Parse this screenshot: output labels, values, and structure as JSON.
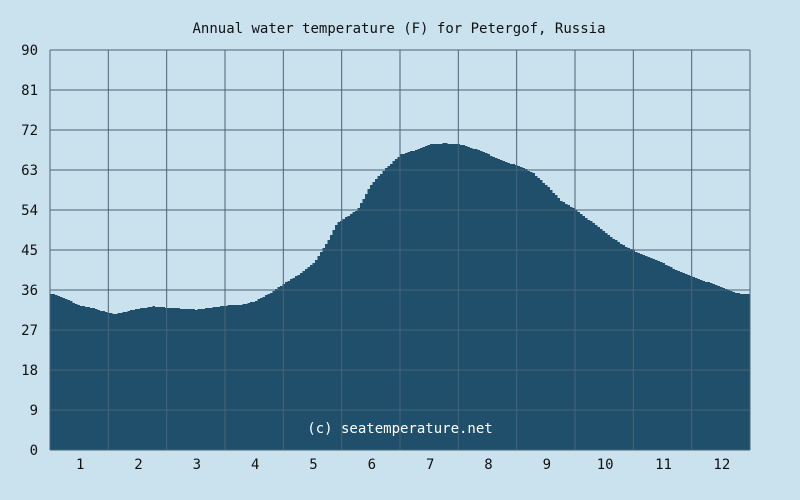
{
  "chart_data": {
    "type": "area",
    "title": "Annual water temperature (F) for Petergof, Russia",
    "watermark": "(c) seatemperature.net",
    "xlabel": "",
    "ylabel": "",
    "x_ticks": [
      "1",
      "2",
      "3",
      "4",
      "5",
      "6",
      "7",
      "8",
      "9",
      "10",
      "11",
      "12"
    ],
    "y_ticks": [
      0,
      9,
      18,
      27,
      36,
      45,
      54,
      63,
      72,
      81,
      90
    ],
    "xlim": [
      0.5,
      12.5
    ],
    "ylim": [
      0,
      90
    ],
    "grid": true,
    "colors": {
      "background": "#c9e2ee",
      "plot_background": "#c9e2ee",
      "fill": "#1f4f6a",
      "grid": "#4a6478",
      "text": "#111111",
      "watermark": "#ffffff"
    },
    "series": [
      {
        "x": [
          0.5,
          0.75,
          1.0,
          1.25,
          1.5,
          1.6,
          1.75,
          2.0,
          2.25,
          2.5,
          2.75,
          3.0,
          3.25,
          3.5,
          3.75,
          4.0,
          4.25,
          4.5,
          4.75,
          5.0,
          5.25,
          5.4,
          5.75,
          6.0,
          6.25,
          6.5,
          6.75,
          7.0,
          7.25,
          7.5,
          7.75,
          8.0,
          8.25,
          8.5,
          8.75,
          9.0,
          9.25,
          9.5,
          9.75,
          10.0,
          10.25,
          10.5,
          10.75,
          11.0,
          11.25,
          11.5,
          11.75,
          12.0,
          12.25,
          12.5
        ],
        "values": [
          35.2,
          34.0,
          32.5,
          31.8,
          30.8,
          30.6,
          31.0,
          31.8,
          32.3,
          32.0,
          31.8,
          31.6,
          32.0,
          32.5,
          32.6,
          33.5,
          35.2,
          37.5,
          39.5,
          42.0,
          47.0,
          51.0,
          54.0,
          60.0,
          63.5,
          66.5,
          67.5,
          68.8,
          69.0,
          68.8,
          67.8,
          66.5,
          65.0,
          64.0,
          62.5,
          59.5,
          56.0,
          54.0,
          51.5,
          49.0,
          46.5,
          44.8,
          43.5,
          42.0,
          40.2,
          39.0,
          37.8,
          36.5,
          35.3,
          35.0
        ]
      }
    ]
  }
}
